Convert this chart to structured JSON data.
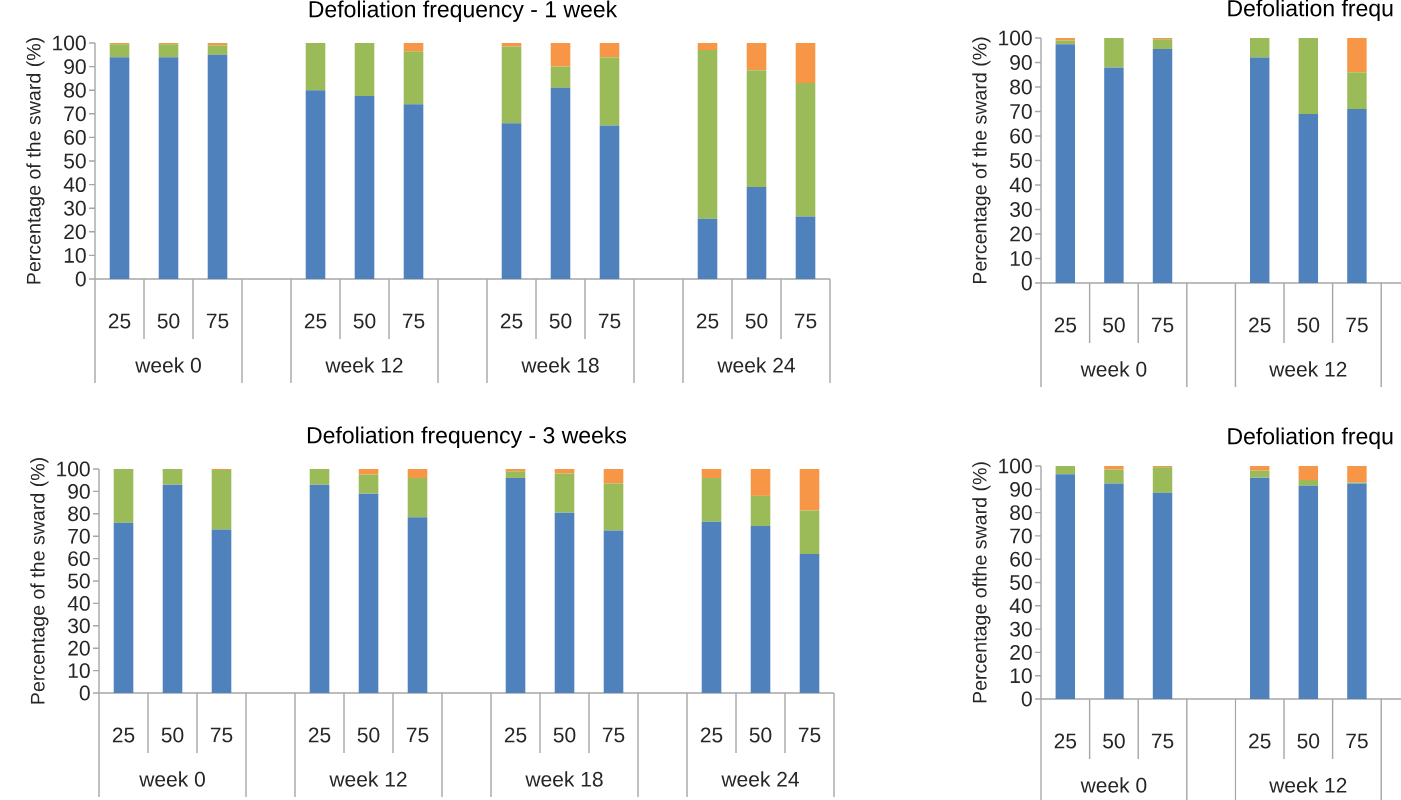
{
  "chart_data": [
    {
      "type": "bar",
      "stacked": true,
      "title": "Defoliation frequency - 1 week",
      "ylabel": "Percentage of the sward (%)",
      "categories": [
        "25",
        "50",
        "75",
        null,
        "25",
        "50",
        "75",
        null,
        "25",
        "50",
        "75",
        null,
        "25",
        "50",
        "75"
      ],
      "ylim": [
        0,
        100
      ],
      "yticks": [
        0,
        10,
        20,
        30,
        40,
        50,
        60,
        70,
        80,
        90,
        100
      ],
      "annotations": [
        "week 0",
        "week 12",
        "week 18",
        "week 24"
      ],
      "series": [
        {
          "color": "#4f81bd",
          "values": [
            94,
            94,
            95,
            null,
            80,
            77.5,
            74,
            null,
            66,
            81,
            65,
            null,
            25.5,
            39,
            26.5
          ]
        },
        {
          "color": "#9bbb59",
          "values": [
            5.5,
            5.5,
            4,
            null,
            20,
            22.5,
            22.5,
            null,
            32.5,
            9,
            29,
            null,
            71.5,
            49.5,
            56.5
          ]
        },
        {
          "color": "#f79646",
          "values": [
            0.5,
            0.5,
            1,
            null,
            0,
            0,
            3.5,
            null,
            1.5,
            10,
            6,
            null,
            3,
            11.5,
            17
          ]
        }
      ]
    },
    {
      "type": "bar",
      "stacked": true,
      "title": "Defoliation frequ",
      "ylabel": "Percentage of the sward (%)",
      "categories": [
        "25",
        "50",
        "75",
        null,
        "25",
        "50",
        "75"
      ],
      "ylim": [
        0,
        100
      ],
      "yticks": [
        0,
        10,
        20,
        30,
        40,
        50,
        60,
        70,
        80,
        90,
        100
      ],
      "annotations": [
        "week 0",
        "week 12"
      ],
      "series": [
        {
          "color": "#4f81bd",
          "values": [
            97.5,
            88,
            95.5,
            null,
            92,
            69,
            71
          ]
        },
        {
          "color": "#9bbb59",
          "values": [
            1.5,
            12,
            4,
            null,
            8,
            31,
            15
          ]
        },
        {
          "color": "#f79646",
          "values": [
            1,
            0,
            0.5,
            null,
            0,
            0,
            14
          ]
        }
      ]
    },
    {
      "type": "bar",
      "stacked": true,
      "title": "Defoliation frequency - 3 weeks",
      "ylabel": "Percentage of the sward (%)",
      "categories": [
        "25",
        "50",
        "75",
        null,
        "25",
        "50",
        "75",
        null,
        "25",
        "50",
        "75",
        null,
        "25",
        "50",
        "75"
      ],
      "ylim": [
        0,
        100
      ],
      "yticks": [
        0,
        10,
        20,
        30,
        40,
        50,
        60,
        70,
        80,
        90,
        100
      ],
      "annotations": [
        "week 0",
        "week 12",
        "week 18",
        "week 24"
      ],
      "series": [
        {
          "color": "#4f81bd",
          "values": [
            76,
            93,
            73,
            null,
            93,
            89,
            78.5,
            null,
            96,
            80.5,
            72.5,
            null,
            76.5,
            74.5,
            62
          ]
        },
        {
          "color": "#9bbb59",
          "values": [
            24,
            7,
            26.5,
            null,
            7,
            8.5,
            17.5,
            null,
            3,
            17.5,
            21,
            null,
            19.5,
            13.5,
            19.5
          ]
        },
        {
          "color": "#f79646",
          "values": [
            0,
            0,
            0.5,
            null,
            0,
            2.5,
            4,
            null,
            1,
            2,
            6.5,
            null,
            4,
            12,
            18.5
          ]
        }
      ]
    },
    {
      "type": "bar",
      "stacked": true,
      "title": "Defoliation frequ",
      "ylabel": "Percentage ofthe sward (%)",
      "categories": [
        "25",
        "50",
        "75",
        null,
        "25",
        "50",
        "75"
      ],
      "ylim": [
        0,
        100
      ],
      "yticks": [
        0,
        10,
        20,
        30,
        40,
        50,
        60,
        70,
        80,
        90,
        100
      ],
      "annotations": [
        "week 0",
        "week 12"
      ],
      "series": [
        {
          "color": "#4f81bd",
          "values": [
            96.5,
            92.5,
            88.5,
            null,
            95,
            91.5,
            92.5
          ]
        },
        {
          "color": "#9bbb59",
          "values": [
            3.5,
            6,
            11,
            null,
            3,
            2.5,
            0.5
          ]
        },
        {
          "color": "#f79646",
          "values": [
            0,
            1.5,
            0.5,
            null,
            2,
            6,
            7
          ]
        }
      ]
    }
  ]
}
